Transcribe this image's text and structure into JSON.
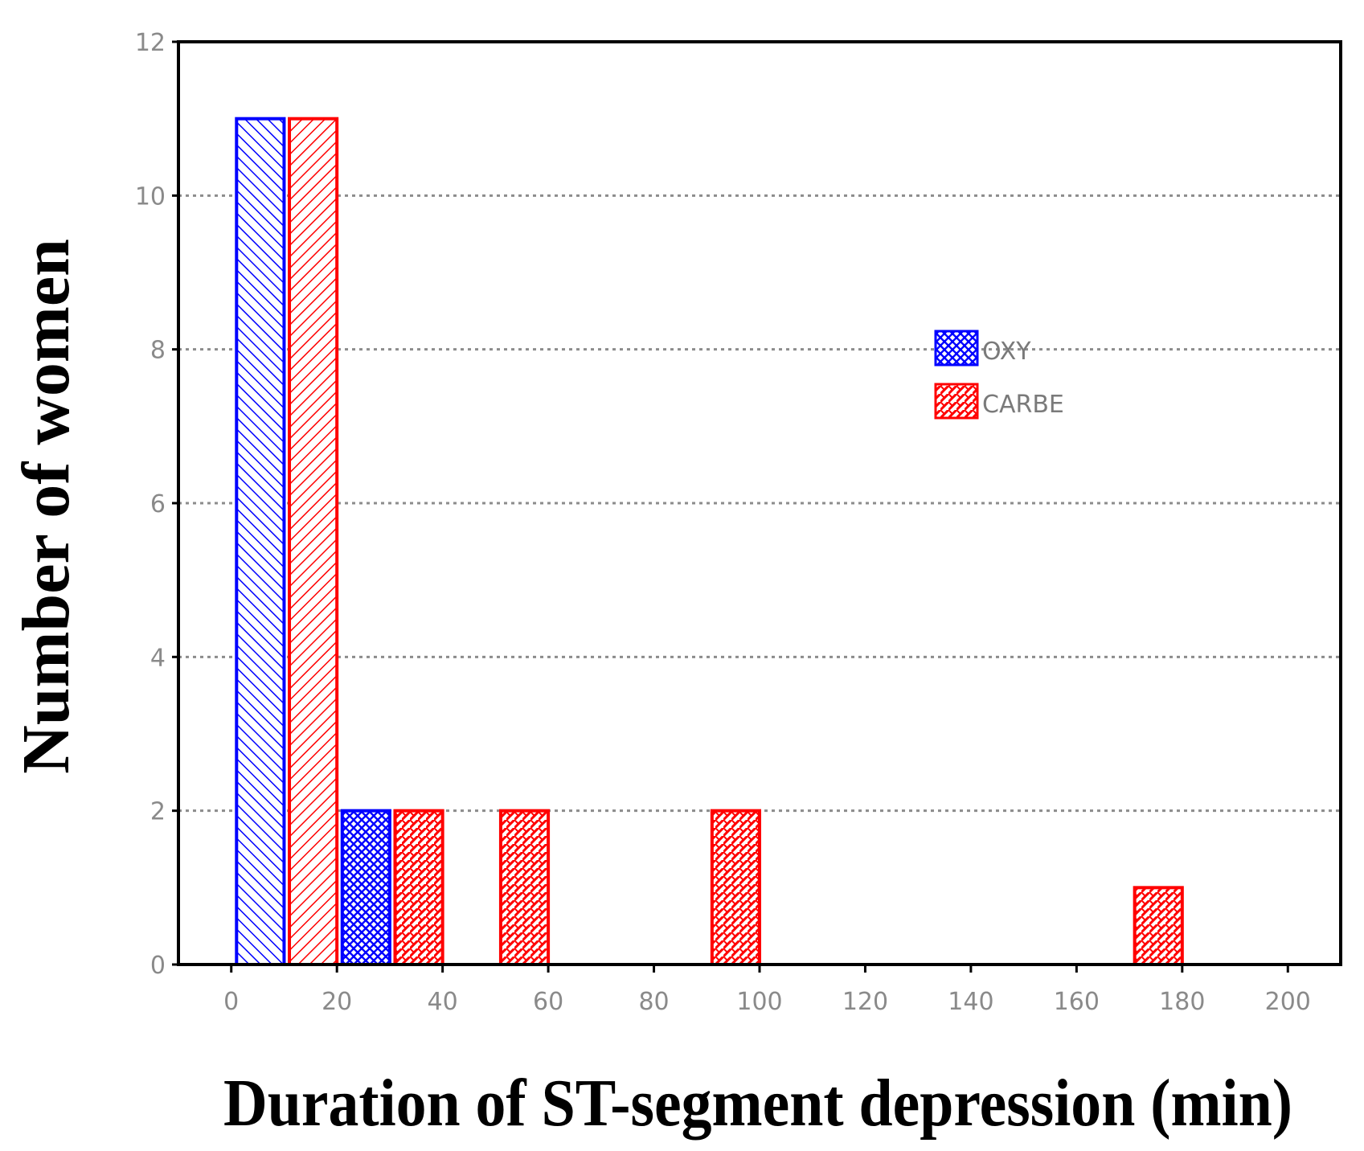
{
  "chart_data": {
    "type": "bar",
    "title": "",
    "xlabel": "Duration of ST-segment depression (min)",
    "ylabel": "Number of women",
    "xlim": [
      -10,
      210
    ],
    "ylim": [
      0,
      12
    ],
    "x_ticks": [
      "0",
      "20",
      "40",
      "60",
      "80",
      "100",
      "120",
      "140",
      "160",
      "180",
      "200"
    ],
    "y_ticks": [
      "0",
      "2",
      "4",
      "6",
      "8",
      "10",
      "12"
    ],
    "grid": "horizontal dotted",
    "legend_position": "right",
    "series": [
      {
        "name": "OXY",
        "color": "#0000ff",
        "bars": [
          {
            "x_start": 1,
            "x_end": 10,
            "value": 11
          },
          {
            "x_start": 21,
            "x_end": 30,
            "value": 2
          }
        ]
      },
      {
        "name": "CARBE",
        "color": "#ff0000",
        "bars": [
          {
            "x_start": 11,
            "x_end": 20,
            "value": 11
          },
          {
            "x_start": 31,
            "x_end": 40,
            "value": 2
          },
          {
            "x_start": 51,
            "x_end": 60,
            "value": 2
          },
          {
            "x_start": 91,
            "x_end": 100,
            "value": 2
          },
          {
            "x_start": 171,
            "x_end": 180,
            "value": 1
          }
        ]
      }
    ]
  }
}
